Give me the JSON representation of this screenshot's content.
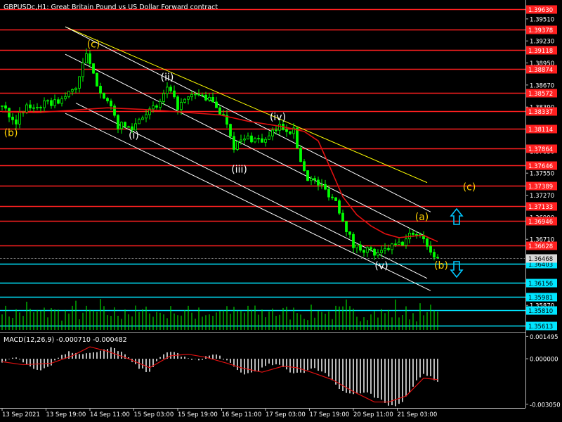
{
  "symbol_title": "GBPUSDc,H1:  Great Britain Pound vs US Dollar Forward contract",
  "macd_title": "MACD(12,26,9) -0.000710 -0.000482",
  "colors": {
    "background": "#000000",
    "candle": "#00ff00",
    "ma": "#e01010",
    "level_red": "#ff2020",
    "level_cyan": "#00e5ff",
    "channel": "#ffffff",
    "channel_upper": "#ffff00",
    "wave_yellow": "#ffd000",
    "wave_white": "#ffffff",
    "arrow": "#00c8ff"
  },
  "chart_data": [
    {
      "type": "candlestick",
      "title": "GBPUSDc,H1:  Great Britain Pound vs US Dollar Forward contract",
      "ylim": [
        1.3555,
        1.3975
      ],
      "y_ticks": [
        "1.39510",
        "1.39230",
        "1.38950",
        "1.38670",
        "1.38390",
        "1.38110",
        "1.37830",
        "1.37550",
        "1.37270",
        "1.36990",
        "1.36710",
        "1.36403",
        "1.36156",
        "1.35870",
        "1.35613"
      ],
      "price_levels": [
        {
          "label": "1.39630",
          "value": 1.3963,
          "color": "red"
        },
        {
          "label": "1.39378",
          "value": 1.39378,
          "color": "red"
        },
        {
          "label": "1.39118",
          "value": 1.39118,
          "color": "red"
        },
        {
          "label": "1.38874",
          "value": 1.38874,
          "color": "red"
        },
        {
          "label": "1.38572",
          "value": 1.38572,
          "color": "red"
        },
        {
          "label": "1.38337",
          "value": 1.38337,
          "color": "red"
        },
        {
          "label": "1.38114",
          "value": 1.38114,
          "color": "red"
        },
        {
          "label": "1.37864",
          "value": 1.37864,
          "color": "red"
        },
        {
          "label": "1.37646",
          "value": 1.37646,
          "color": "red"
        },
        {
          "label": "1.37389",
          "value": 1.37389,
          "color": "red"
        },
        {
          "label": "1.37133",
          "value": 1.37133,
          "color": "red"
        },
        {
          "label": "1.36946",
          "value": 1.36946,
          "color": "red"
        },
        {
          "label": "1.36628",
          "value": 1.36628,
          "color": "red"
        },
        {
          "label": "1.36403",
          "value": 1.36403,
          "color": "cyan"
        },
        {
          "label": "1.36156",
          "value": 1.36156,
          "color": "cyan"
        },
        {
          "label": "1.35981",
          "value": 1.35981,
          "color": "cyan"
        },
        {
          "label": "1.35810",
          "value": 1.3581,
          "color": "cyan"
        },
        {
          "label": "1.35613",
          "value": 1.35613,
          "color": "cyan"
        }
      ],
      "current_price": {
        "label": "1.36468",
        "value": 1.36468
      },
      "x_ticks": [
        "13 Sep 2021",
        "13 Sep 19:00",
        "14 Sep 11:00",
        "15 Sep 03:00",
        "15 Sep 19:00",
        "16 Sep 11:00",
        "17 Sep 03:00",
        "17 Sep 19:00",
        "20 Sep 11:00",
        "21 Sep 03:00"
      ],
      "close_path": [
        [
          0,
          1.384
        ],
        [
          4,
          1.3822
        ],
        [
          7,
          1.3838
        ],
        [
          12,
          1.3842
        ],
        [
          17,
          1.3848
        ],
        [
          21,
          1.3865
        ],
        [
          24,
          1.3905
        ],
        [
          26,
          1.3878
        ],
        [
          30,
          1.3845
        ],
        [
          33,
          1.3816
        ],
        [
          37,
          1.3812
        ],
        [
          40,
          1.383
        ],
        [
          44,
          1.3838
        ],
        [
          47,
          1.3862
        ],
        [
          50,
          1.384
        ],
        [
          55,
          1.3855
        ],
        [
          58,
          1.3851
        ],
        [
          61,
          1.384
        ],
        [
          64,
          1.382
        ],
        [
          66,
          1.379
        ],
        [
          70,
          1.38
        ],
        [
          75,
          1.3796
        ],
        [
          79,
          1.3815
        ],
        [
          83,
          1.3808
        ],
        [
          85,
          1.377
        ],
        [
          87,
          1.375
        ],
        [
          91,
          1.3738
        ],
        [
          95,
          1.372
        ],
        [
          98,
          1.3685
        ],
        [
          100,
          1.3662
        ],
        [
          104,
          1.3658
        ],
        [
          107,
          1.365
        ],
        [
          110,
          1.366
        ],
        [
          114,
          1.3666
        ],
        [
          117,
          1.368
        ],
        [
          120,
          1.3674
        ],
        [
          122,
          1.3654
        ],
        [
          124,
          1.3646
        ]
      ],
      "moving_average": [
        [
          0,
          1.3833
        ],
        [
          10,
          1.3832
        ],
        [
          20,
          1.3835
        ],
        [
          30,
          1.3838
        ],
        [
          40,
          1.3836
        ],
        [
          50,
          1.3833
        ],
        [
          62,
          1.3829
        ],
        [
          70,
          1.3821
        ],
        [
          80,
          1.3814
        ],
        [
          86,
          1.3808
        ],
        [
          90,
          1.3796
        ],
        [
          93,
          1.3766
        ],
        [
          97,
          1.3725
        ],
        [
          101,
          1.3702
        ],
        [
          105,
          1.3688
        ],
        [
          109,
          1.3678
        ],
        [
          113,
          1.3673
        ],
        [
          117,
          1.3675
        ],
        [
          120,
          1.3676
        ],
        [
          124,
          1.3668
        ]
      ],
      "wave_labels": [
        {
          "text": "(b)",
          "x": 2.5,
          "y": 1.3802,
          "color": "yellow"
        },
        {
          "text": "(c)",
          "x": 26,
          "y": 1.39145,
          "color": "yellow"
        },
        {
          "text": "(i)",
          "x": 37.5,
          "y": 1.3799,
          "color": "white"
        },
        {
          "text": "(ii)",
          "x": 47,
          "y": 1.38725,
          "color": "white"
        },
        {
          "text": "(iii)",
          "x": 67.5,
          "y": 1.37555,
          "color": "white"
        },
        {
          "text": "(iv)",
          "x": 78.5,
          "y": 1.38222,
          "color": "white"
        },
        {
          "text": "(v)",
          "x": 108,
          "y": 1.3633,
          "color": "white"
        },
        {
          "text": "(a)",
          "x": 119.5,
          "y": 1.36955,
          "color": "yellow"
        },
        {
          "text": "(b)",
          "x": 125,
          "y": 1.36335,
          "color": "yellow"
        },
        {
          "text": "(c)",
          "x": 133,
          "y": 1.37335,
          "color": "yellow"
        }
      ]
    },
    {
      "type": "histogram",
      "title": "MACD(12,26,9) -0.000710 -0.000482",
      "ylim": [
        -0.00325,
        0.0017
      ],
      "y_ticks": [
        "0.001495",
        "0.000000",
        "-0.003050"
      ],
      "signal": [
        [
          0,
          -0.0002
        ],
        [
          6,
          -0.0004
        ],
        [
          14,
          -0.0003
        ],
        [
          20,
          0.0002
        ],
        [
          25,
          0.0008
        ],
        [
          30,
          0.0005
        ],
        [
          36,
          0.0
        ],
        [
          42,
          -0.0006
        ],
        [
          48,
          0.0002
        ],
        [
          53,
          0.0003
        ],
        [
          58,
          0.0001
        ],
        [
          64,
          -0.0003
        ],
        [
          68,
          -0.0006
        ],
        [
          74,
          -0.0009
        ],
        [
          80,
          -0.0005
        ],
        [
          84,
          -0.0006
        ],
        [
          88,
          -0.0009
        ],
        [
          94,
          -0.0014
        ],
        [
          100,
          -0.0022
        ],
        [
          106,
          -0.0029
        ],
        [
          110,
          -0.0029
        ],
        [
          115,
          -0.0025
        ],
        [
          120,
          -0.0013
        ],
        [
          124,
          -0.0014
        ]
      ]
    }
  ]
}
